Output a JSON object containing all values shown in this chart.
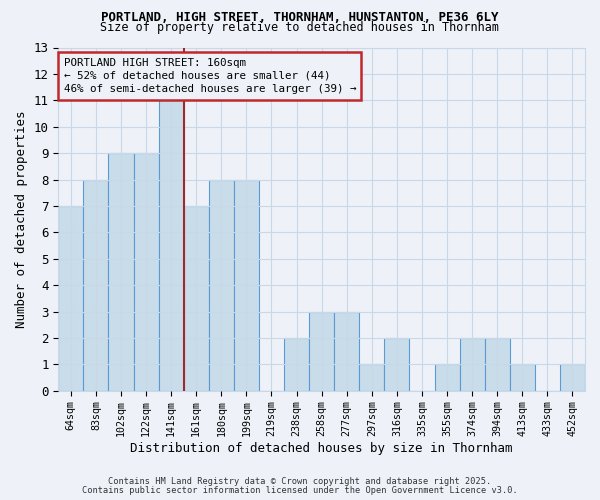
{
  "title1": "PORTLAND, HIGH STREET, THORNHAM, HUNSTANTON, PE36 6LY",
  "title2": "Size of property relative to detached houses in Thornham",
  "xlabel": "Distribution of detached houses by size in Thornham",
  "ylabel": "Number of detached properties",
  "bin_labels": [
    "64sqm",
    "83sqm",
    "102sqm",
    "122sqm",
    "141sqm",
    "161sqm",
    "180sqm",
    "199sqm",
    "219sqm",
    "238sqm",
    "258sqm",
    "277sqm",
    "297sqm",
    "316sqm",
    "335sqm",
    "355sqm",
    "374sqm",
    "394sqm",
    "413sqm",
    "433sqm",
    "452sqm"
  ],
  "bar_heights": [
    7,
    8,
    9,
    9,
    11,
    7,
    8,
    8,
    0,
    2,
    3,
    3,
    1,
    2,
    0,
    1,
    2,
    2,
    1,
    0,
    1
  ],
  "bar_color": "#c9dcea",
  "bar_edge_color": "#5b9bd5",
  "grid_color": "#c8d8e8",
  "background_color": "#eef2f8",
  "vline_x_index": 5,
  "vline_color": "#a0272a",
  "annotation_title": "PORTLAND HIGH STREET: 160sqm",
  "annotation_line1": "← 52% of detached houses are smaller (44)",
  "annotation_line2": "46% of semi-detached houses are larger (39) →",
  "annotation_box_edge": "#c0292b",
  "ylim": [
    0,
    13
  ],
  "yticks": [
    0,
    1,
    2,
    3,
    4,
    5,
    6,
    7,
    8,
    9,
    10,
    11,
    12,
    13
  ],
  "footnote1": "Contains HM Land Registry data © Crown copyright and database right 2025.",
  "footnote2": "Contains public sector information licensed under the Open Government Licence v3.0."
}
